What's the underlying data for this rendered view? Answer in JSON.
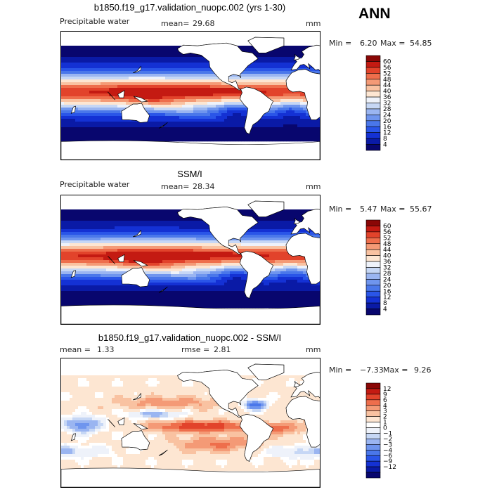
{
  "season": "ANN",
  "colors": {
    "pw_scale": [
      "#08066e",
      "#0a1aa6",
      "#1431d4",
      "#2a55e8",
      "#4a77ea",
      "#6f95ee",
      "#9ab5f1",
      "#c6d7f5",
      "#eef2fa",
      "#fde6d2",
      "#f9c2a1",
      "#f49a76",
      "#ee6e4c",
      "#e2432b",
      "#c41a12",
      "#8a0706"
    ],
    "diff_scale": [
      "#08066e",
      "#0a1aa6",
      "#1431d4",
      "#2a55e8",
      "#4a77ea",
      "#6f95ee",
      "#9ab5f1",
      "#c6d7f5",
      "#eef2fa",
      "#ffffff",
      "#fde6d2",
      "#f9c2a1",
      "#f49a76",
      "#ee6e4c",
      "#e2432b",
      "#c41a12",
      "#8a0706"
    ],
    "land": "#ffffff",
    "coast": "#000000"
  },
  "chart_data": [
    {
      "type": "heatmap",
      "title": "b1850.f19_g17.validation_nuopc.002 (yrs 1-30)",
      "variable_label": "Precipitable water",
      "mean_label": "mean=",
      "mean_value": "29.68",
      "units": "mm",
      "min_label": "Min =",
      "min_value": "6.20",
      "max_label": "Max =",
      "max_value": "54.85",
      "min": 6.2,
      "max": 54.85,
      "colorbar_ticks": [
        "60",
        "56",
        "52",
        "48",
        "44",
        "40",
        "36",
        "32",
        "28",
        "24",
        "20",
        "16",
        "12",
        "8",
        "4"
      ],
      "colorbar_scale": "pw_scale"
    },
    {
      "type": "heatmap",
      "title": "SSM/I",
      "variable_label": "Precipitable water",
      "mean_label": "mean=",
      "mean_value": "28.34",
      "units": "mm",
      "min_label": "Min =",
      "min_value": "5.47",
      "max_label": "Max =",
      "max_value": "55.67",
      "min": 5.47,
      "max": 55.67,
      "colorbar_ticks": [
        "60",
        "56",
        "52",
        "48",
        "44",
        "40",
        "36",
        "32",
        "28",
        "24",
        "20",
        "16",
        "12",
        "8",
        "4"
      ],
      "colorbar_scale": "pw_scale"
    },
    {
      "type": "heatmap",
      "title": "b1850.f19_g17.validation_nuopc.002 - SSM/I",
      "variable_label": "mean =",
      "mean_label": "",
      "mean_value": "1.33",
      "rmse_label": "rmse =",
      "rmse_value": "2.81",
      "units": "mm",
      "min_label": "Min =",
      "min_value": "−7.33",
      "max_label": "Max =",
      "max_value": "9.26",
      "min": -7.33,
      "max": 9.26,
      "colorbar_ticks": [
        "12",
        "9",
        "6",
        "4",
        "3",
        "2",
        "1",
        "0",
        "−1",
        "−2",
        "−3",
        "−4",
        "−6",
        "−9",
        "−12"
      ],
      "colorbar_scale": "diff_scale"
    }
  ]
}
